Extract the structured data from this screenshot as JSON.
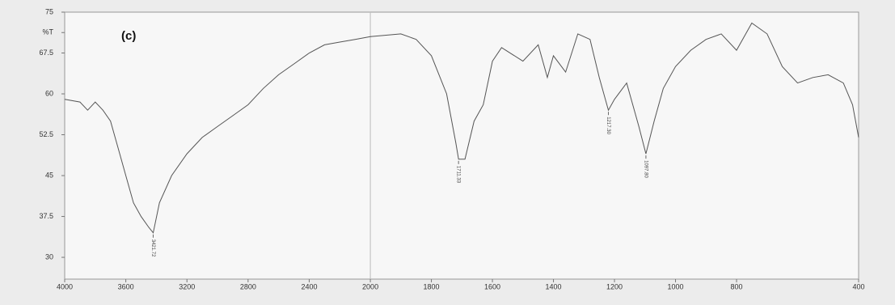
{
  "chart_data": {
    "type": "line",
    "annotation": "(c)",
    "x_break": 2000,
    "x": [
      4000,
      3900,
      3850,
      3800,
      3750,
      3700,
      3650,
      3600,
      3550,
      3500,
      3450,
      3421,
      3380,
      3300,
      3200,
      3100,
      3000,
      2900,
      2800,
      2700,
      2600,
      2500,
      2400,
      2300,
      2200,
      2100,
      2000,
      1900,
      1850,
      1800,
      1750,
      1720,
      1711,
      1690,
      1660,
      1630,
      1600,
      1570,
      1500,
      1450,
      1420,
      1400,
      1360,
      1320,
      1280,
      1250,
      1220,
      1200,
      1160,
      1120,
      1097,
      1070,
      1040,
      1000,
      950,
      900,
      850,
      800,
      750,
      700,
      650,
      600,
      550,
      500,
      450,
      420,
      400
    ],
    "series": [
      {
        "name": "%T",
        "color": "#555555",
        "values": [
          59,
          58.5,
          57,
          58.5,
          57,
          55,
          50,
          45,
          40,
          37.5,
          35.5,
          34.5,
          40,
          45,
          49,
          52,
          54,
          56,
          58,
          61,
          63.5,
          65.5,
          67.5,
          69,
          69.5,
          70,
          70.5,
          71,
          70,
          67,
          60,
          51,
          48,
          48,
          55,
          58,
          66,
          68.5,
          66,
          69,
          63,
          67,
          64,
          71,
          70,
          63,
          57,
          59,
          62,
          54,
          49,
          55,
          61,
          65,
          68,
          70,
          71,
          68,
          73,
          71,
          65,
          62,
          63,
          63.5,
          62,
          58,
          52
        ]
      }
    ],
    "peaks": [
      {
        "x": 3421,
        "y": 34.5,
        "label": "3421.72"
      },
      {
        "x": 1711,
        "y": 48,
        "label": "1711.33"
      },
      {
        "x": 1097,
        "y": 49,
        "label": "1097.80"
      },
      {
        "x": 1220,
        "y": 57,
        "label": "1217.30"
      }
    ],
    "xlim": [
      4000,
      400
    ],
    "xticks": [
      4000,
      3600,
      3200,
      2800,
      2400,
      2000,
      1800,
      1600,
      1400,
      1200,
      1000,
      800,
      400
    ],
    "ylim": [
      26,
      75
    ],
    "yticks": [
      30,
      37.5,
      45,
      52.5,
      60,
      67.5,
      {
        "value": 71.25,
        "label": "%T"
      },
      75
    ]
  }
}
